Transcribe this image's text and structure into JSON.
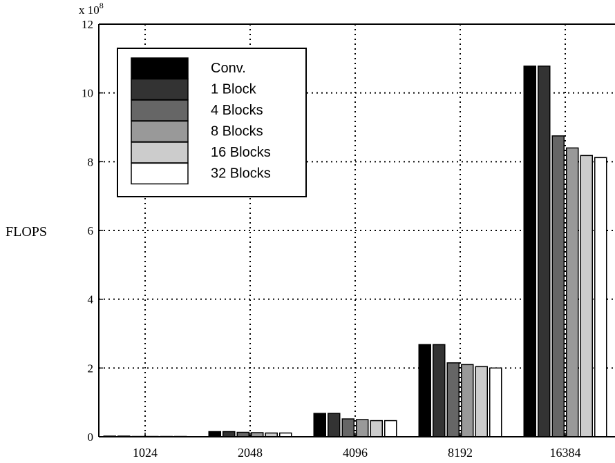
{
  "chart_data": {
    "type": "bar",
    "title": "",
    "xlabel": "",
    "ylabel": "FLOPS",
    "y_multiplier_base": "x 10",
    "y_multiplier_exponent": "8",
    "categories": [
      "1024",
      "2048",
      "4096",
      "8192",
      "16384"
    ],
    "ylim": [
      0,
      12
    ],
    "yticks": [
      "0",
      "2",
      "4",
      "6",
      "8",
      "10",
      "12"
    ],
    "grid": true,
    "grid_style": "dotted",
    "legend_position": "top-left",
    "series": [
      {
        "name": "Conv.",
        "color": "#000000",
        "values": [
          0.02,
          0.15,
          0.68,
          2.68,
          10.78
        ]
      },
      {
        "name": "1 Block",
        "color": "#333333",
        "values": [
          0.02,
          0.15,
          0.68,
          2.68,
          10.78
        ]
      },
      {
        "name": "4 Blocks",
        "color": "#666666",
        "values": [
          0.01,
          0.13,
          0.52,
          2.15,
          8.75
        ]
      },
      {
        "name": "8 Blocks",
        "color": "#999999",
        "values": [
          0.01,
          0.12,
          0.5,
          2.1,
          8.4
        ]
      },
      {
        "name": "16 Blocks",
        "color": "#cccccc",
        "values": [
          0.01,
          0.11,
          0.47,
          2.04,
          8.18
        ]
      },
      {
        "name": "32 Blocks",
        "color": "#ffffff",
        "values": [
          0.01,
          0.11,
          0.47,
          2.0,
          8.12
        ]
      }
    ]
  }
}
